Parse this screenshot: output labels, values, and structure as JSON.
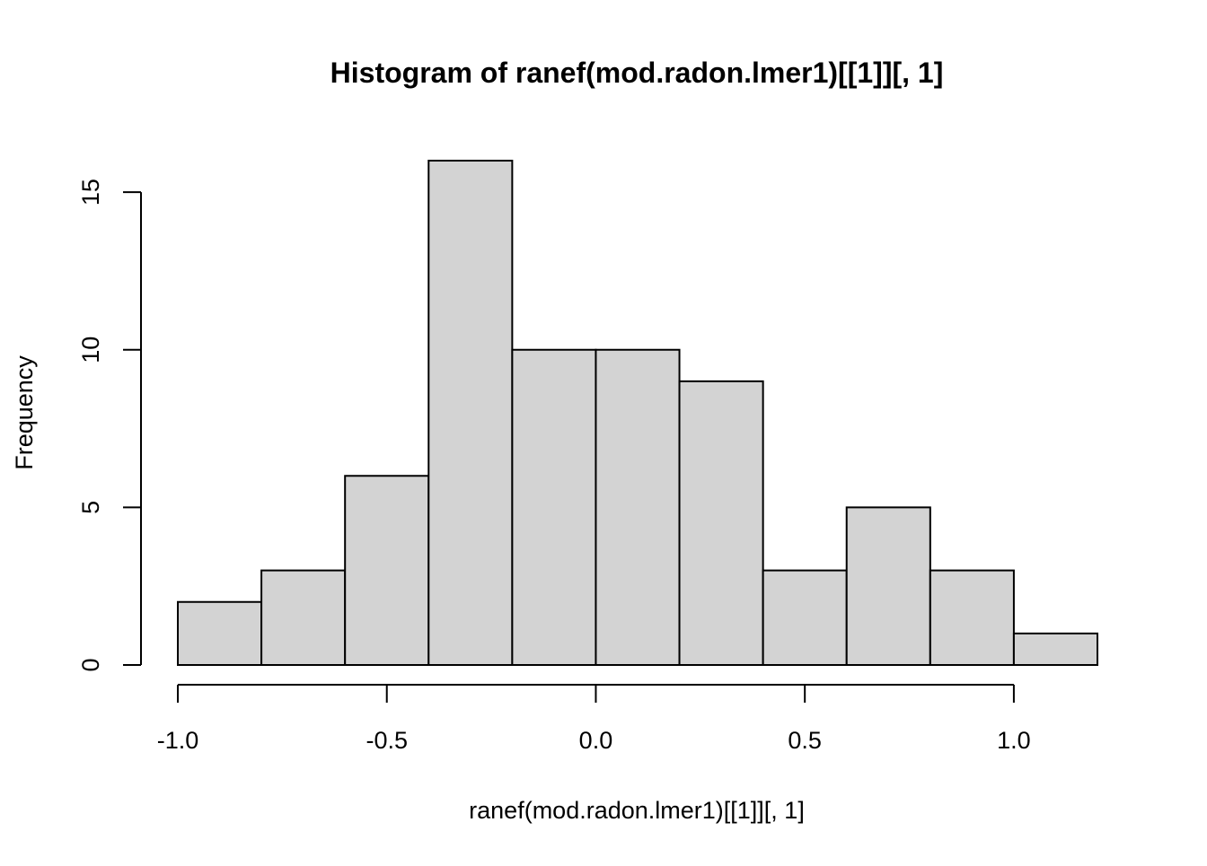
{
  "chart_data": {
    "type": "bar",
    "title": "Histogram of ranef(mod.radon.lmer1)[[1]][, 1]",
    "xlabel": "ranef(mod.radon.lmer1)[[1]][, 1]",
    "ylabel": "Frequency",
    "bin_edges": [
      -1.0,
      -0.8,
      -0.6,
      -0.4,
      -0.2,
      0.0,
      0.2,
      0.4,
      0.6,
      0.8,
      1.0,
      1.2
    ],
    "values": [
      2,
      3,
      6,
      16,
      10,
      10,
      9,
      3,
      5,
      3,
      1
    ],
    "xlim": [
      -1.0,
      1.2
    ],
    "ylim": [
      0,
      16
    ],
    "x_ticks": [
      -1.0,
      -0.5,
      0.0,
      0.5,
      1.0
    ],
    "x_tick_labels": [
      "-1.0",
      "-0.5",
      "0.0",
      "0.5",
      "1.0"
    ],
    "y_ticks": [
      0,
      5,
      10,
      15
    ],
    "y_tick_labels": [
      "0",
      "5",
      "10",
      "15"
    ],
    "bar_fill": "#d3d3d3",
    "bar_stroke": "#000000",
    "grid": false,
    "legend": "none"
  }
}
